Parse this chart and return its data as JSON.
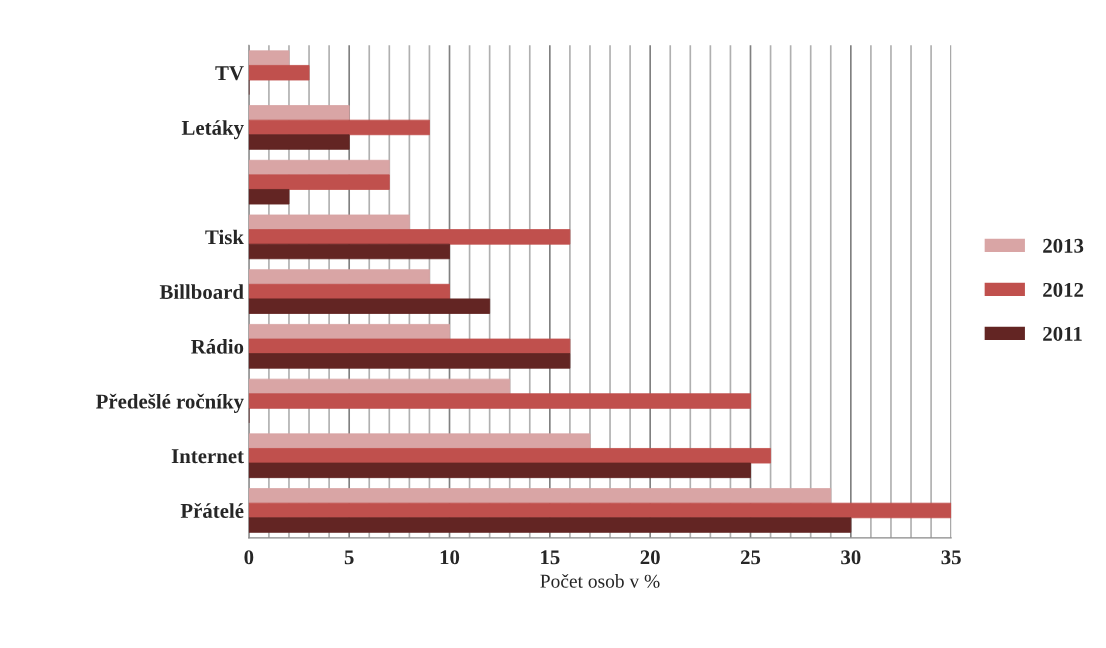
{
  "chart_data": {
    "type": "bar",
    "orientation": "horizontal",
    "xlabel": "Počet osob v %",
    "categories": [
      "TV",
      "Letáky",
      null,
      "Tisk",
      "Billboard",
      "Rádio",
      "Předešlé ročníky",
      "Internet",
      "Přátelé"
    ],
    "series": [
      {
        "name": "2013",
        "color": "#d9a5a5",
        "values": [
          2,
          5,
          7,
          8,
          9,
          10,
          13,
          17,
          29
        ]
      },
      {
        "name": "2012",
        "color": "#c0504d",
        "values": [
          3,
          9,
          7,
          16,
          10,
          16,
          25,
          26,
          35
        ]
      },
      {
        "name": "2011",
        "color": "#632523",
        "values": [
          0,
          5,
          2,
          10,
          12,
          16,
          0,
          25,
          30
        ]
      }
    ],
    "xlim": [
      0,
      35
    ],
    "xticks": [
      0,
      {
        "value": 1,
        "label": null
      },
      {
        "value": 2,
        "label": null
      },
      {
        "value": 3,
        "label": null
      },
      {
        "value": 4,
        "label": null
      },
      5,
      {
        "value": 6,
        "label": null
      },
      {
        "value": 7,
        "label": null
      },
      {
        "value": 8,
        "label": null
      },
      {
        "value": 9,
        "label": null
      },
      10,
      {
        "value": 11,
        "label": null
      },
      {
        "value": 12,
        "label": null
      },
      {
        "value": 13,
        "label": null
      },
      {
        "value": 14,
        "label": null
      },
      15,
      {
        "value": 16,
        "label": null
      },
      {
        "value": 17,
        "label": null
      },
      {
        "value": 18,
        "label": null
      },
      {
        "value": 19,
        "label": null
      },
      20,
      {
        "value": 21,
        "label": null
      },
      {
        "value": 22,
        "label": null
      },
      {
        "value": 23,
        "label": null
      },
      {
        "value": 24,
        "label": null
      },
      25,
      {
        "value": 26,
        "label": null
      },
      {
        "value": 27,
        "label": null
      },
      {
        "value": 28,
        "label": null
      },
      {
        "value": 29,
        "label": null
      },
      30,
      {
        "value": 31,
        "label": null
      },
      {
        "value": 32,
        "label": null
      },
      {
        "value": 33,
        "label": null
      },
      {
        "value": 34,
        "label": null
      },
      35
    ],
    "grid": "x",
    "legend": "right"
  }
}
